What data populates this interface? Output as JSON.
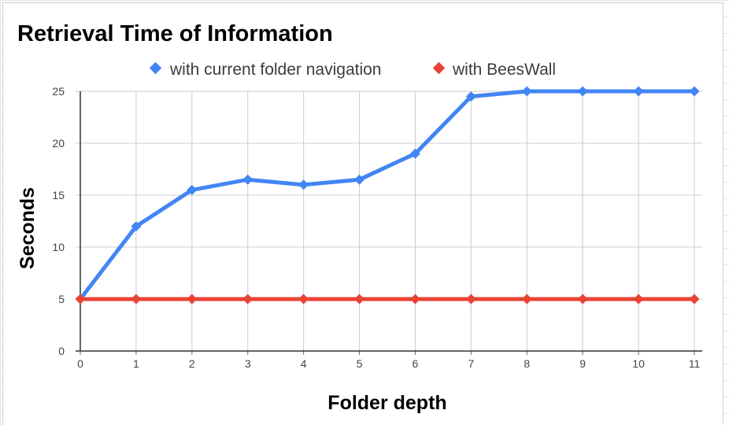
{
  "chart_data": {
    "type": "line",
    "title": "Retrieval Time of Information",
    "xlabel": "Folder depth",
    "ylabel": "Seconds",
    "x": [
      0,
      1,
      2,
      3,
      4,
      5,
      6,
      7,
      8,
      9,
      10,
      11
    ],
    "ylim": [
      0,
      25
    ],
    "yticks": [
      0,
      5,
      10,
      15,
      20,
      25
    ],
    "grid": true,
    "legend_position": "top",
    "series": [
      {
        "name": "with current folder navigation",
        "color": "#4285f4",
        "values": [
          5,
          12,
          15.5,
          16.5,
          16,
          16.5,
          19,
          24.5,
          25,
          25,
          25,
          25
        ]
      },
      {
        "name": "with BeesWall",
        "color": "#ea4335",
        "values": [
          5,
          5,
          5,
          5,
          5,
          5,
          5,
          5,
          5,
          5,
          5,
          5
        ]
      }
    ]
  }
}
